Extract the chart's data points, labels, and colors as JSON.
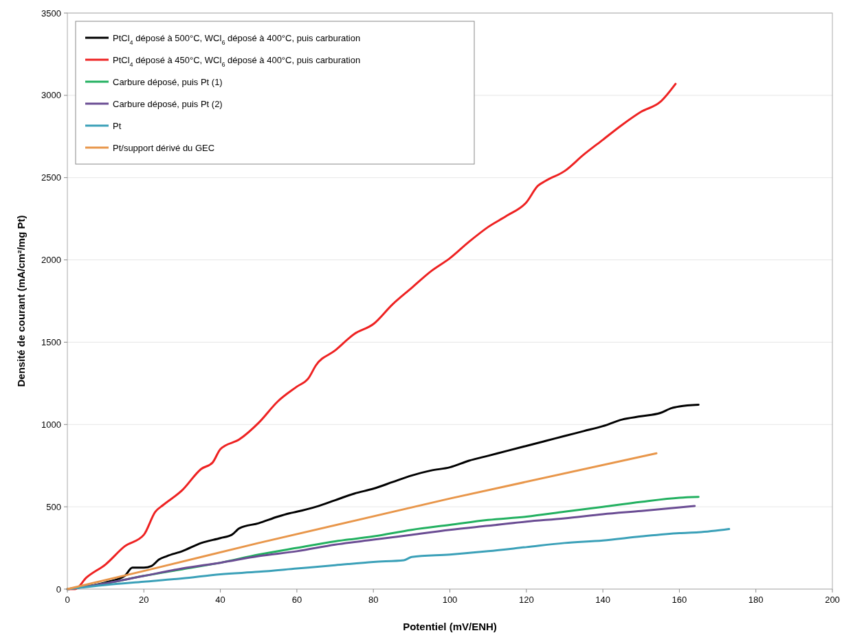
{
  "chart_data": {
    "type": "line",
    "xlabel": "Potentiel  (mV/ENH)",
    "ylabel": "Densité de courant (mA/cm²/mg Pt)",
    "xlim": [
      0,
      200
    ],
    "xticks": [
      0,
      20,
      40,
      60,
      80,
      100,
      120,
      140,
      160,
      180,
      200
    ],
    "ylim": [
      0,
      3500
    ],
    "yticks": [
      0,
      500,
      1000,
      1500,
      2000,
      2500,
      3000,
      3500
    ],
    "grid": "y",
    "legend": "top left",
    "marker": "none",
    "line_style": "solid",
    "series": [
      {
        "name": "PtCl$_{4}$ déposé à 500°C, WCl$_{6}$ déposé à 400°C, puis carburation",
        "color": "#000000",
        "x": [
          0,
          10,
          15,
          17,
          20,
          22,
          24,
          26,
          30,
          35,
          40,
          43,
          45,
          50,
          55,
          58,
          60,
          65,
          70,
          75,
          80,
          85,
          90,
          95,
          100,
          105,
          110,
          115,
          120,
          125,
          130,
          135,
          140,
          145,
          150,
          155,
          158,
          160,
          165
        ],
        "values": [
          0,
          40,
          80,
          130,
          130,
          140,
          180,
          200,
          230,
          280,
          310,
          330,
          370,
          400,
          440,
          460,
          470,
          500,
          540,
          580,
          610,
          650,
          690,
          720,
          740,
          780,
          810,
          840,
          870,
          900,
          930,
          960,
          990,
          1030,
          1050,
          1070,
          1100,
          1110,
          1120
        ]
      },
      {
        "name": "PtCl$_{4}$ déposé à 450°C, WCl$_{6}$ déposé à 400°C, puis carburation",
        "color": "#ee2222",
        "x": [
          0,
          2,
          5,
          10,
          15,
          20,
          23,
          25,
          30,
          35,
          38,
          40,
          45,
          50,
          55,
          60,
          63,
          65,
          70,
          75,
          80,
          85,
          90,
          95,
          100,
          105,
          110,
          115,
          120,
          123,
          125,
          130,
          135,
          140,
          145,
          150,
          155,
          159
        ],
        "values": [
          0,
          0,
          70,
          150,
          260,
          330,
          470,
          510,
          600,
          730,
          770,
          850,
          910,
          1010,
          1140,
          1230,
          1280,
          1360,
          1450,
          1550,
          1610,
          1730,
          1830,
          1930,
          2010,
          2110,
          2200,
          2270,
          2350,
          2450,
          2480,
          2540,
          2640,
          2730,
          2820,
          2900,
          2960,
          3070
        ]
      },
      {
        "name": "Carbure déposé, puis Pt (1)",
        "color": "#22b060",
        "x": [
          0,
          10,
          20,
          30,
          40,
          50,
          60,
          70,
          80,
          90,
          100,
          110,
          120,
          130,
          140,
          150,
          160,
          165
        ],
        "values": [
          0,
          35,
          80,
          120,
          160,
          210,
          250,
          290,
          320,
          360,
          390,
          420,
          440,
          470,
          500,
          530,
          555,
          560
        ]
      },
      {
        "name": "Carbure déposé, puis Pt (2)",
        "color": "#6a4c93",
        "x": [
          0,
          10,
          20,
          30,
          40,
          50,
          60,
          70,
          80,
          90,
          100,
          110,
          120,
          130,
          140,
          150,
          164
        ],
        "values": [
          0,
          35,
          80,
          125,
          160,
          200,
          230,
          270,
          300,
          330,
          360,
          385,
          410,
          430,
          455,
          475,
          505
        ]
      },
      {
        "name": "Pt",
        "color": "#3aa0b8",
        "x": [
          0,
          10,
          20,
          30,
          40,
          50,
          60,
          70,
          80,
          88,
          90,
          100,
          110,
          120,
          130,
          140,
          150,
          160,
          165,
          173
        ],
        "values": [
          0,
          25,
          45,
          65,
          90,
          105,
          125,
          145,
          165,
          175,
          195,
          210,
          230,
          255,
          280,
          295,
          320,
          340,
          345,
          365
        ]
      },
      {
        "name": "Pt/support dérivé du GEC",
        "color": "#e8964a",
        "x": [
          0,
          20,
          50,
          100,
          154
        ],
        "values": [
          0,
          110,
          280,
          550,
          825
        ]
      }
    ]
  }
}
